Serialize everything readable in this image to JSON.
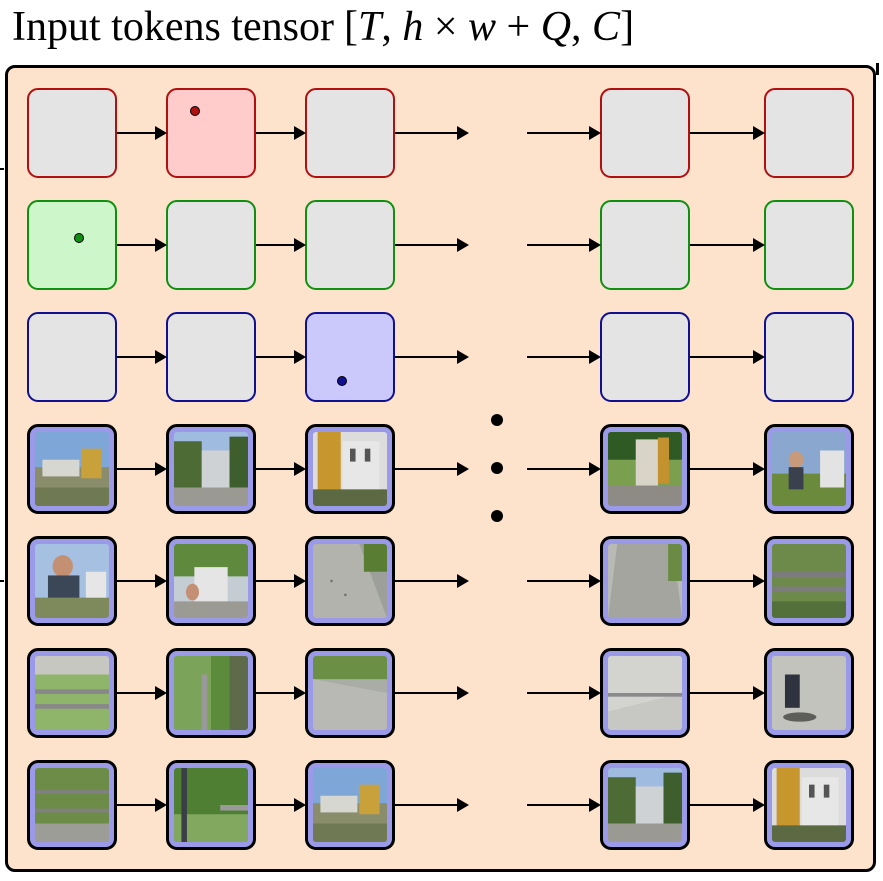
{
  "title": {
    "prefix": "Input tokens tensor",
    "math": [
      "[",
      "T",
      ", ",
      "h",
      " × ",
      "w",
      " + ",
      "Q",
      ", ",
      "C",
      "]"
    ]
  },
  "colors": {
    "panel_fill": "#fde3cc",
    "query_red": "#b01010",
    "query_green": "#109010",
    "query_blue": "#101090",
    "red_highlight_fill": "#ffcbcb",
    "green_highlight_fill": "#cdf6cb",
    "blue_highlight_fill": "#cbc8fc",
    "empty_token_fill": "#e4e4e4",
    "frame_token_border": "#9b9ae8"
  },
  "query_rows": [
    {
      "color": "red",
      "highlighted_column": 2
    },
    {
      "color": "green",
      "highlighted_column": 1
    },
    {
      "color": "blue",
      "highlighted_column": 3
    }
  ],
  "patch_rows": [
    {
      "content": "video frame patch row 1"
    },
    {
      "content": "video frame patch row 2"
    },
    {
      "content": "video frame patch row 3"
    },
    {
      "content": "video frame patch row 4"
    }
  ],
  "ellipsis_dots": 3
}
